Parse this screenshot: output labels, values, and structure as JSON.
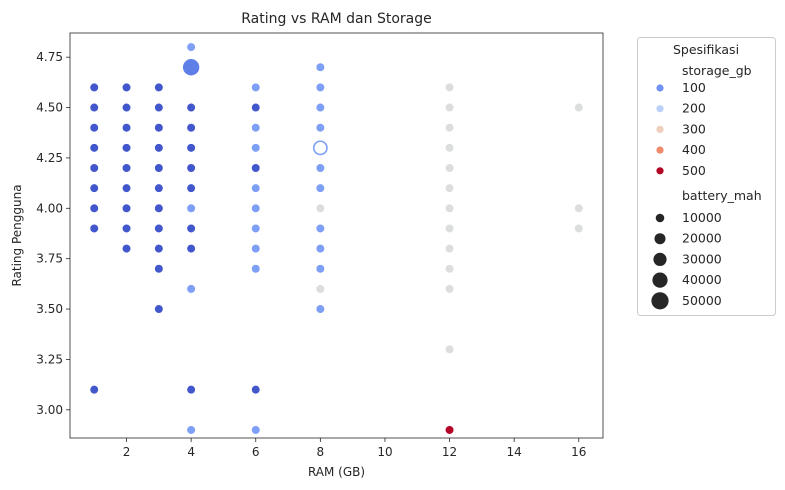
{
  "chart_data": {
    "type": "scatter",
    "title": "Rating vs RAM dan Storage",
    "xlabel": "RAM (GB)",
    "ylabel": "Rating Pengguna",
    "xlim": [
      0.25,
      16.75
    ],
    "ylim": [
      2.86,
      4.87
    ],
    "xticks": [
      2,
      4,
      6,
      8,
      10,
      12,
      14,
      16
    ],
    "yticks": [
      "3.00",
      "3.25",
      "3.50",
      "3.75",
      "4.00",
      "4.25",
      "4.50",
      "4.75"
    ],
    "grid": false,
    "legend_position": "outside-right",
    "legend": {
      "title": "Spesifikasi",
      "hue_title": "storage_gb",
      "hue_entries": [
        {
          "label": "100",
          "color": "#6f92f3"
        },
        {
          "label": "200",
          "color": "#b9d0f9"
        },
        {
          "label": "300",
          "color": "#efcebd"
        },
        {
          "label": "400",
          "color": "#f08a6c"
        },
        {
          "label": "500",
          "color": "#b40426"
        }
      ],
      "size_title": "battery_mah",
      "size_entries": [
        "10000",
        "20000",
        "30000",
        "40000",
        "50000"
      ]
    },
    "series": [
      {
        "color": "#4257cb",
        "points": [
          {
            "x": 1,
            "y": 4.6
          },
          {
            "x": 1,
            "y": 4.5
          },
          {
            "x": 1,
            "y": 4.4
          },
          {
            "x": 1,
            "y": 4.3
          },
          {
            "x": 1,
            "y": 4.2
          },
          {
            "x": 1,
            "y": 4.1
          },
          {
            "x": 1,
            "y": 4.0
          },
          {
            "x": 1,
            "y": 3.9
          },
          {
            "x": 1,
            "y": 3.1
          },
          {
            "x": 2,
            "y": 4.6
          },
          {
            "x": 2,
            "y": 4.5
          },
          {
            "x": 2,
            "y": 4.4
          },
          {
            "x": 2,
            "y": 4.3
          },
          {
            "x": 2,
            "y": 4.2
          },
          {
            "x": 2,
            "y": 4.1
          },
          {
            "x": 2,
            "y": 4.0
          },
          {
            "x": 2,
            "y": 3.9
          },
          {
            "x": 2,
            "y": 3.8
          },
          {
            "x": 3,
            "y": 4.6
          },
          {
            "x": 3,
            "y": 4.5
          },
          {
            "x": 3,
            "y": 4.4
          },
          {
            "x": 3,
            "y": 4.3
          },
          {
            "x": 3,
            "y": 4.2
          },
          {
            "x": 3,
            "y": 4.1
          },
          {
            "x": 3,
            "y": 4.0
          },
          {
            "x": 3,
            "y": 3.9
          },
          {
            "x": 3,
            "y": 3.8
          },
          {
            "x": 3,
            "y": 3.7
          },
          {
            "x": 3,
            "y": 3.5
          },
          {
            "x": 4,
            "y": 4.5
          },
          {
            "x": 4,
            "y": 4.4
          },
          {
            "x": 4,
            "y": 4.3
          },
          {
            "x": 4,
            "y": 4.2
          },
          {
            "x": 4,
            "y": 4.1
          },
          {
            "x": 4,
            "y": 3.9
          },
          {
            "x": 4,
            "y": 3.8
          },
          {
            "x": 4,
            "y": 3.1
          },
          {
            "x": 6,
            "y": 4.5
          },
          {
            "x": 6,
            "y": 4.2
          },
          {
            "x": 6,
            "y": 3.1
          }
        ]
      },
      {
        "color": "#7d9ff6",
        "points": [
          {
            "x": 4,
            "y": 4.8
          },
          {
            "x": 4,
            "y": 4.0
          },
          {
            "x": 4,
            "y": 3.6
          },
          {
            "x": 4,
            "y": 2.9
          },
          {
            "x": 6,
            "y": 4.6
          },
          {
            "x": 6,
            "y": 4.4
          },
          {
            "x": 6,
            "y": 4.3
          },
          {
            "x": 6,
            "y": 4.1
          },
          {
            "x": 6,
            "y": 4.0
          },
          {
            "x": 6,
            "y": 3.9
          },
          {
            "x": 6,
            "y": 3.8
          },
          {
            "x": 6,
            "y": 3.7
          },
          {
            "x": 6,
            "y": 2.9
          },
          {
            "x": 8,
            "y": 4.7
          },
          {
            "x": 8,
            "y": 4.6
          },
          {
            "x": 8,
            "y": 4.5
          },
          {
            "x": 8,
            "y": 4.4
          },
          {
            "x": 8,
            "y": 4.2
          },
          {
            "x": 8,
            "y": 4.1
          },
          {
            "x": 8,
            "y": 3.9
          },
          {
            "x": 8,
            "y": 3.8
          },
          {
            "x": 8,
            "y": 3.7
          },
          {
            "x": 8,
            "y": 3.5
          }
        ]
      },
      {
        "color": "#dcdddd",
        "points": [
          {
            "x": 8,
            "y": 4.3
          },
          {
            "x": 8,
            "y": 4.0
          },
          {
            "x": 8,
            "y": 3.6
          },
          {
            "x": 12,
            "y": 4.6
          },
          {
            "x": 12,
            "y": 4.5
          },
          {
            "x": 12,
            "y": 4.4
          },
          {
            "x": 12,
            "y": 4.3
          },
          {
            "x": 12,
            "y": 4.2
          },
          {
            "x": 12,
            "y": 4.1
          },
          {
            "x": 12,
            "y": 4.0
          },
          {
            "x": 12,
            "y": 3.9
          },
          {
            "x": 12,
            "y": 3.8
          },
          {
            "x": 12,
            "y": 3.7
          },
          {
            "x": 12,
            "y": 3.6
          },
          {
            "x": 12,
            "y": 3.3
          },
          {
            "x": 16,
            "y": 4.5
          },
          {
            "x": 16,
            "y": 4.0
          },
          {
            "x": 16,
            "y": 3.9
          }
        ]
      },
      {
        "color": "#b40426",
        "points": [
          {
            "x": 12,
            "y": 2.9
          }
        ]
      }
    ],
    "large_markers": [
      {
        "x": 4,
        "y": 4.7,
        "color": "#5f7fe8",
        "size_level": 5
      },
      {
        "x": 8,
        "y": 4.3,
        "color": "#ffffff",
        "edge": "#7d9ff6",
        "size_level": 3
      }
    ]
  }
}
